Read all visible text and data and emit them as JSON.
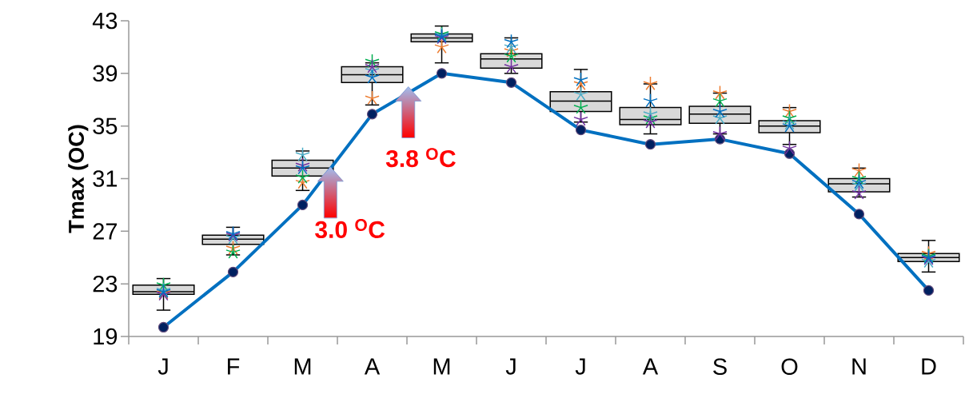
{
  "chart_data": {
    "type": "box",
    "ylabel": "Tmax  (OC)",
    "categories": [
      "J",
      "F",
      "M",
      "A",
      "M",
      "J",
      "J",
      "A",
      "S",
      "O",
      "N",
      "D"
    ],
    "ylim": [
      19,
      43
    ],
    "yticks": [
      19,
      23,
      27,
      31,
      35,
      39,
      43
    ],
    "boxes": [
      {
        "low": 21.0,
        "q1": 22.2,
        "median": 22.4,
        "q3": 22.9,
        "high": 23.4
      },
      {
        "low": 25.2,
        "q1": 26.0,
        "median": 26.4,
        "q3": 26.7,
        "high": 27.3
      },
      {
        "low": 30.1,
        "q1": 31.2,
        "median": 31.8,
        "q3": 32.4,
        "high": 33.1
      },
      {
        "low": 36.6,
        "q1": 38.3,
        "median": 38.9,
        "q3": 39.5,
        "high": 39.8
      },
      {
        "low": 39.8,
        "q1": 41.4,
        "median": 41.7,
        "q3": 42.0,
        "high": 42.6
      },
      {
        "low": 39.0,
        "q1": 39.4,
        "median": 40.1,
        "q3": 40.5,
        "high": 41.7
      },
      {
        "low": 35.3,
        "q1": 36.1,
        "median": 36.9,
        "q3": 37.6,
        "high": 39.3
      },
      {
        "low": 34.4,
        "q1": 35.1,
        "median": 35.5,
        "q3": 36.4,
        "high": 38.2
      },
      {
        "low": 34.4,
        "q1": 35.2,
        "median": 35.9,
        "q3": 36.5,
        "high": 37.5
      },
      {
        "low": 33.6,
        "q1": 34.5,
        "median": 35.0,
        "q3": 35.4,
        "high": 36.4
      },
      {
        "low": 29.6,
        "q1": 30.0,
        "median": 30.6,
        "q3": 31.0,
        "high": 31.8
      },
      {
        "low": 23.9,
        "q1": 24.7,
        "median": 25.0,
        "q3": 25.3,
        "high": 26.3
      }
    ],
    "series": [
      {
        "type": "line",
        "color": "#0070c0",
        "marker": "circle",
        "values": [
          19.7,
          23.9,
          29.0,
          35.9,
          39.0,
          38.3,
          34.7,
          33.6,
          34.0,
          32.9,
          28.3,
          22.5
        ]
      },
      {
        "type": "scatter",
        "color": "#ed7d31",
        "marker": "cross",
        "values": [
          22.3,
          25.7,
          30.7,
          37.1,
          41.0,
          40.7,
          38.2,
          38.2,
          37.5,
          36.1,
          31.6,
          25.3
        ]
      },
      {
        "type": "scatter",
        "color": "#00b050",
        "marker": "cross",
        "values": [
          22.9,
          25.4,
          31.1,
          39.9,
          42.0,
          40.3,
          36.4,
          35.6,
          36.9,
          35.6,
          31.0,
          25.1
        ]
      },
      {
        "type": "scatter",
        "color": "#4bacc6",
        "marker": "cross",
        "values": [
          22.5,
          26.5,
          32.8,
          39.2,
          41.9,
          41.0,
          37.4,
          35.9,
          35.6,
          35.2,
          30.5,
          24.7
        ]
      },
      {
        "type": "scatter",
        "color": "#7030a0",
        "marker": "cross",
        "values": [
          22.2,
          26.7,
          32.0,
          39.5,
          41.7,
          39.5,
          35.5,
          35.3,
          34.4,
          33.3,
          29.9,
          24.9
        ]
      },
      {
        "type": "scatter",
        "color": "#0070c0",
        "marker": "cross",
        "values": [
          22.4,
          26.8,
          31.8,
          38.7,
          41.8,
          41.4,
          38.5,
          36.9,
          36.1,
          35.0,
          30.7,
          25.0
        ]
      }
    ],
    "annotations": [
      "3.0 $^{O}$C",
      "3.8 $^{O}$C"
    ]
  }
}
